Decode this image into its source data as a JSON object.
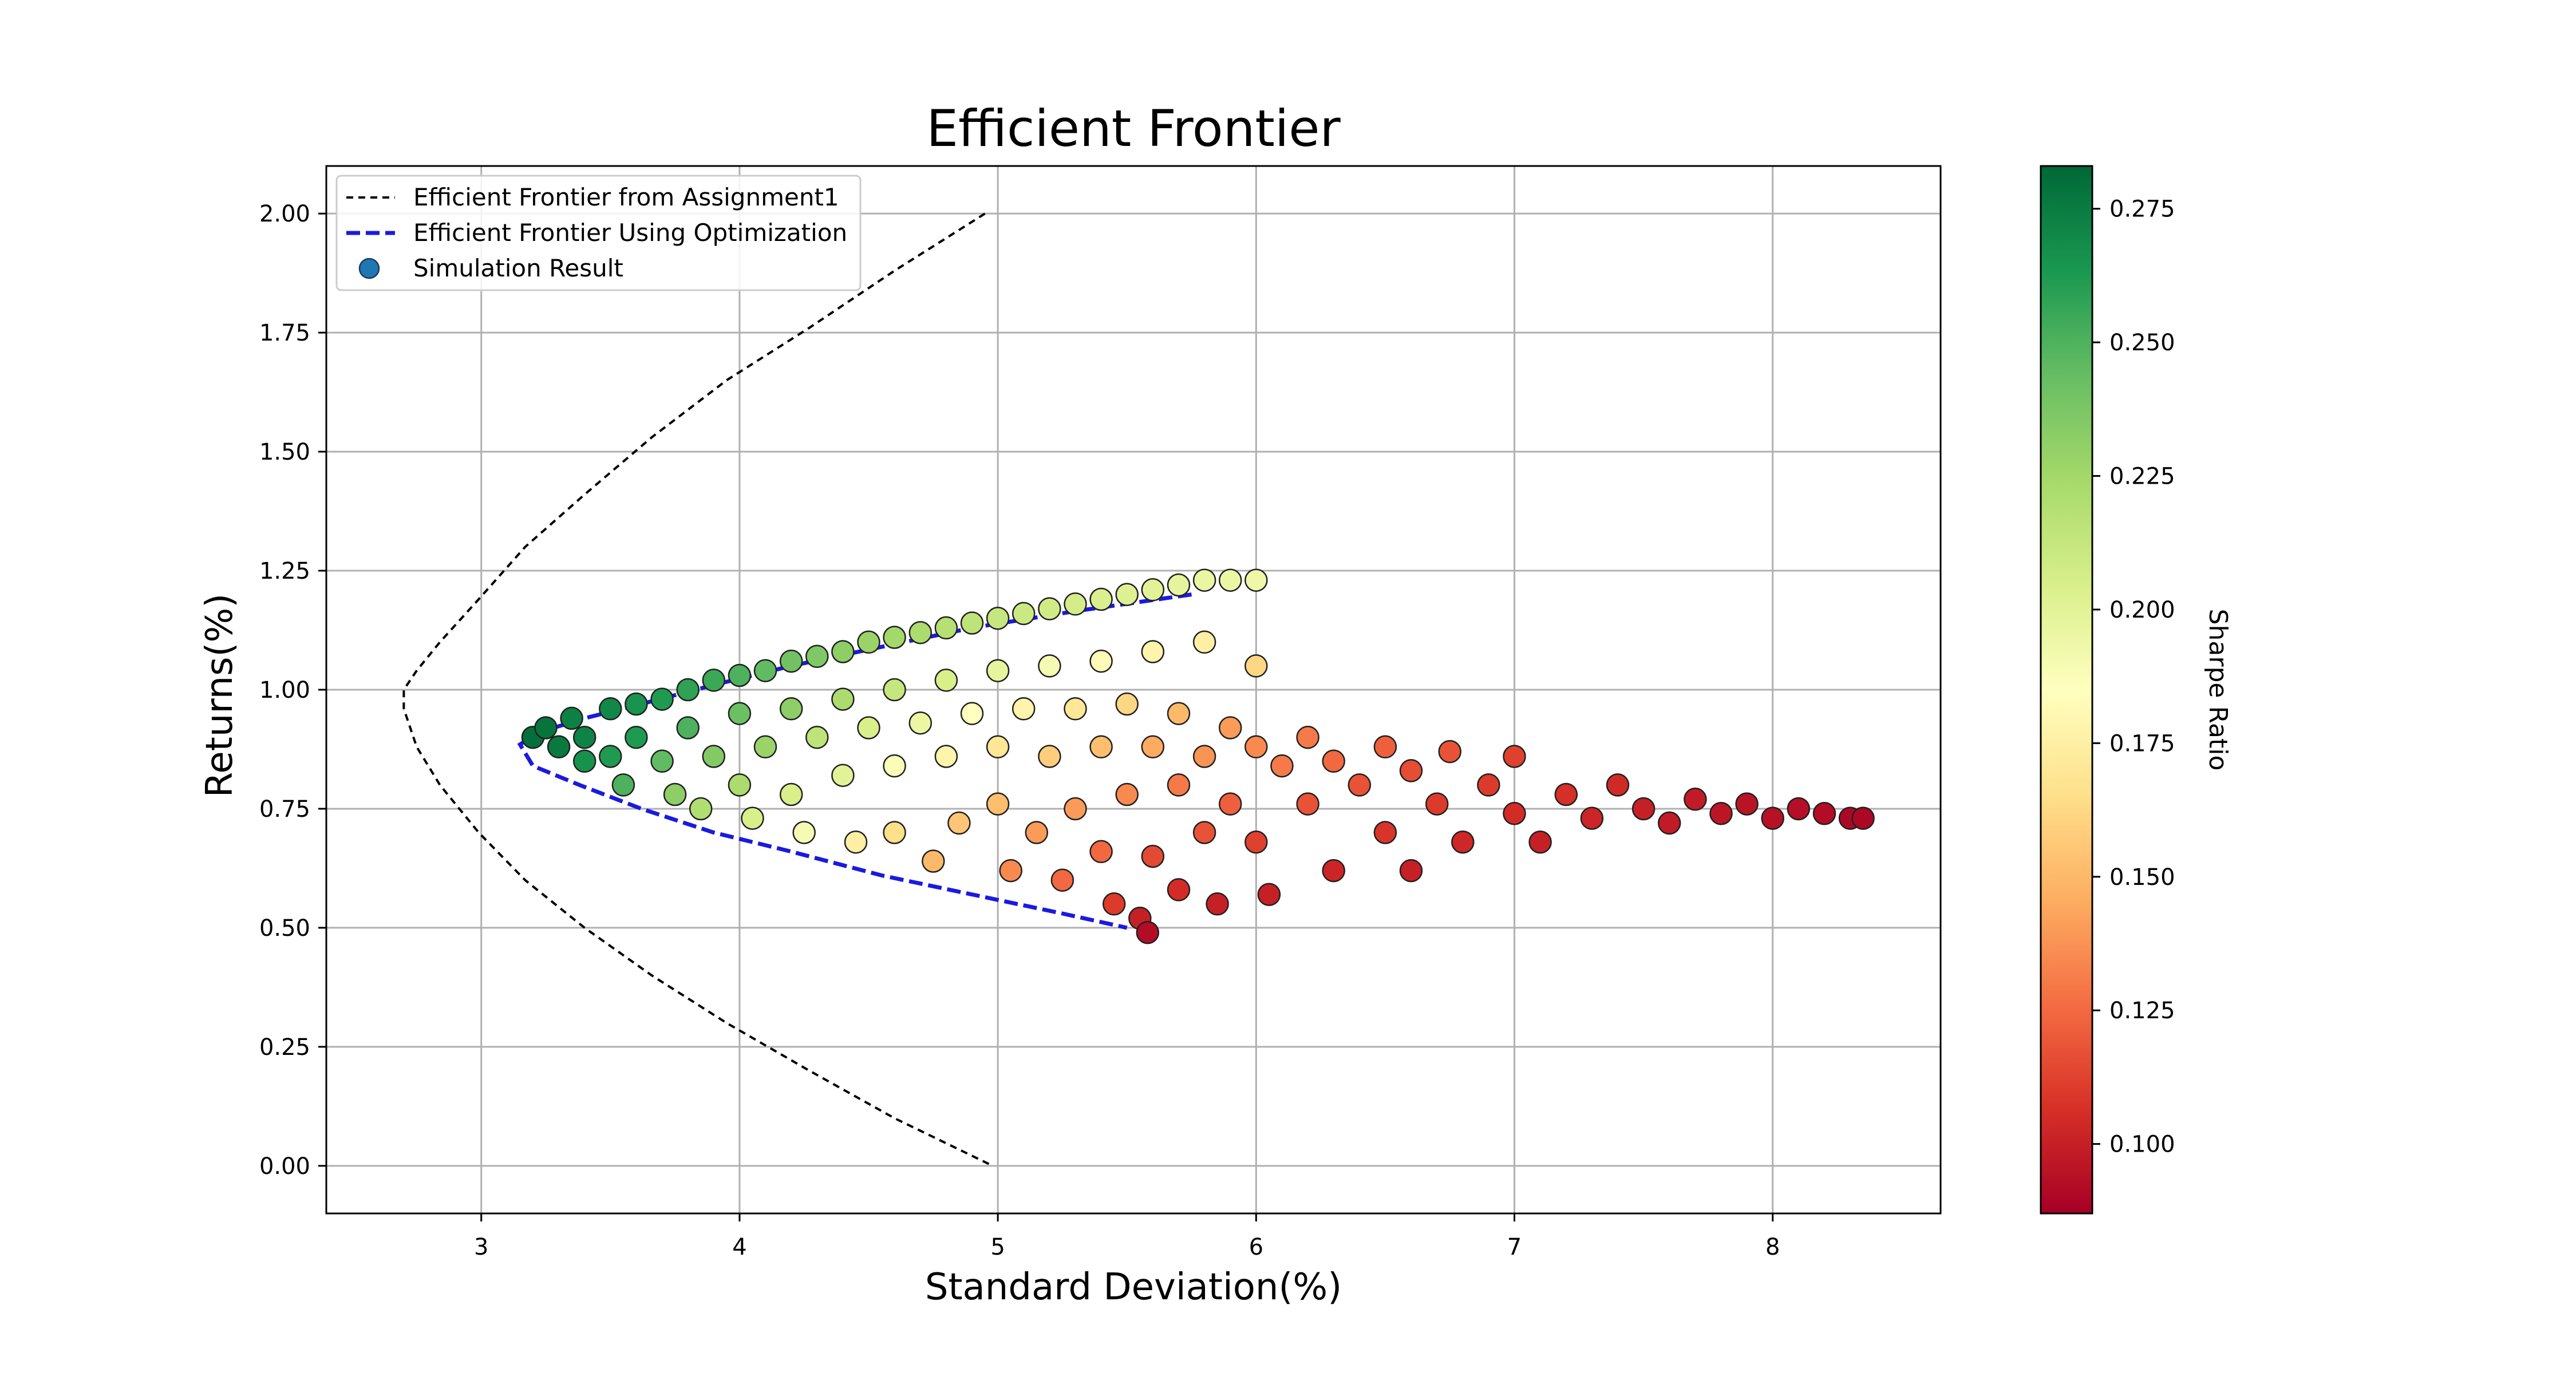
{
  "chart_data": {
    "type": "scatter",
    "title": "Efficient Frontier",
    "xlabel": "Standard Deviation(%)",
    "ylabel": "Returns(%)",
    "xlim": [
      2.4,
      8.65
    ],
    "ylim": [
      -0.1,
      2.1
    ],
    "xticks": [
      3,
      4,
      5,
      6,
      7,
      8
    ],
    "yticks": [
      "0.00",
      "0.25",
      "0.50",
      "0.75",
      "1.00",
      "1.25",
      "1.50",
      "1.75",
      "2.00"
    ],
    "ytick_values": [
      0,
      0.25,
      0.5,
      0.75,
      1.0,
      1.25,
      1.5,
      1.75,
      2.0
    ],
    "grid": true,
    "legend_position": "top-left",
    "legend": [
      {
        "label": "Efficient Frontier from Assignment1",
        "style": "dashed",
        "color": "#000000"
      },
      {
        "label": "Efficient Frontier Using Optimization",
        "style": "dashed",
        "color": "#1a1adf"
      },
      {
        "label": "Simulation Result",
        "style": "marker",
        "color": "#1f77b4"
      }
    ],
    "colorbar": {
      "label": "Sharpe Ratio",
      "colormap": "RdYlGn",
      "range": [
        0.087,
        0.283
      ],
      "ticks": [
        "0.100",
        "0.125",
        "0.150",
        "0.175",
        "0.200",
        "0.225",
        "0.250",
        "0.275"
      ],
      "tick_values": [
        0.1,
        0.125,
        0.15,
        0.175,
        0.2,
        0.225,
        0.25,
        0.275
      ]
    },
    "series": [
      {
        "name": "Efficient Frontier from Assignment1",
        "type": "line",
        "style": "dashed",
        "color": "#000000",
        "x": [
          4.95,
          4.6,
          4.27,
          3.95,
          3.66,
          3.4,
          3.17,
          2.99,
          2.84,
          2.75,
          2.7,
          2.7,
          2.75,
          2.84,
          2.99,
          3.17,
          3.4,
          3.66,
          3.95,
          4.27,
          4.6,
          4.98
        ],
        "y": [
          2.0,
          1.88,
          1.76,
          1.65,
          1.53,
          1.41,
          1.3,
          1.19,
          1.1,
          1.04,
          1.0,
          0.96,
          0.88,
          0.8,
          0.7,
          0.6,
          0.5,
          0.4,
          0.3,
          0.2,
          0.1,
          0.0
        ]
      },
      {
        "name": "Efficient Frontier Using Optimization",
        "type": "line",
        "style": "dashed",
        "color": "#1a1adf",
        "x": [
          5.75,
          5.3,
          4.9,
          4.55,
          4.2,
          3.9,
          3.62,
          3.4,
          3.22,
          3.15,
          3.2,
          3.38,
          3.62,
          3.9,
          4.2,
          4.55,
          4.9,
          5.25,
          5.5
        ],
        "y": [
          1.2,
          1.165,
          1.13,
          1.09,
          1.05,
          1.01,
          0.97,
          0.94,
          0.91,
          0.885,
          0.84,
          0.8,
          0.75,
          0.7,
          0.66,
          0.61,
          0.57,
          0.53,
          0.5
        ]
      },
      {
        "name": "Simulation Result",
        "type": "scatter",
        "color_by": "sharpe_ratio",
        "points": [
          [
            3.2,
            0.9,
            0.28
          ],
          [
            3.25,
            0.92,
            0.278
          ],
          [
            3.3,
            0.88,
            0.276
          ],
          [
            3.35,
            0.94,
            0.273
          ],
          [
            3.4,
            0.9,
            0.272
          ],
          [
            3.4,
            0.85,
            0.266
          ],
          [
            3.5,
            0.96,
            0.27
          ],
          [
            3.5,
            0.86,
            0.262
          ],
          [
            3.55,
            0.8,
            0.25
          ],
          [
            3.6,
            0.97,
            0.265
          ],
          [
            3.6,
            0.9,
            0.262
          ],
          [
            3.7,
            0.98,
            0.262
          ],
          [
            3.7,
            0.85,
            0.245
          ],
          [
            3.75,
            0.78,
            0.232
          ],
          [
            3.8,
            1.0,
            0.258
          ],
          [
            3.8,
            0.92,
            0.25
          ],
          [
            3.85,
            0.75,
            0.22
          ],
          [
            3.9,
            1.02,
            0.255
          ],
          [
            3.9,
            0.86,
            0.235
          ],
          [
            4.0,
            1.03,
            0.25
          ],
          [
            4.0,
            0.95,
            0.242
          ],
          [
            4.0,
            0.8,
            0.222
          ],
          [
            4.05,
            0.73,
            0.205
          ],
          [
            4.1,
            1.04,
            0.245
          ],
          [
            4.1,
            0.88,
            0.228
          ],
          [
            4.2,
            1.06,
            0.24
          ],
          [
            4.2,
            0.96,
            0.232
          ],
          [
            4.2,
            0.78,
            0.205
          ],
          [
            4.25,
            0.7,
            0.19
          ],
          [
            4.3,
            1.07,
            0.236
          ],
          [
            4.3,
            0.9,
            0.215
          ],
          [
            4.4,
            1.08,
            0.232
          ],
          [
            4.4,
            0.98,
            0.222
          ],
          [
            4.4,
            0.82,
            0.2
          ],
          [
            4.45,
            0.68,
            0.175
          ],
          [
            4.5,
            1.1,
            0.228
          ],
          [
            4.5,
            0.92,
            0.205
          ],
          [
            4.6,
            1.11,
            0.225
          ],
          [
            4.6,
            1.0,
            0.212
          ],
          [
            4.6,
            0.84,
            0.188
          ],
          [
            4.6,
            0.7,
            0.165
          ],
          [
            4.7,
            1.12,
            0.222
          ],
          [
            4.7,
            0.93,
            0.195
          ],
          [
            4.75,
            0.64,
            0.15
          ],
          [
            4.8,
            1.13,
            0.218
          ],
          [
            4.8,
            1.02,
            0.205
          ],
          [
            4.8,
            0.86,
            0.178
          ],
          [
            4.85,
            0.72,
            0.155
          ],
          [
            4.9,
            1.14,
            0.215
          ],
          [
            4.9,
            0.95,
            0.185
          ],
          [
            5.0,
            1.15,
            0.212
          ],
          [
            5.0,
            1.04,
            0.198
          ],
          [
            5.0,
            0.88,
            0.17
          ],
          [
            5.0,
            0.76,
            0.152
          ],
          [
            5.05,
            0.62,
            0.135
          ],
          [
            5.1,
            1.16,
            0.21
          ],
          [
            5.1,
            0.96,
            0.178
          ],
          [
            5.15,
            0.7,
            0.14
          ],
          [
            5.2,
            1.17,
            0.208
          ],
          [
            5.2,
            1.05,
            0.19
          ],
          [
            5.2,
            0.86,
            0.158
          ],
          [
            5.25,
            0.6,
            0.125
          ],
          [
            5.3,
            1.18,
            0.206
          ],
          [
            5.3,
            0.96,
            0.17
          ],
          [
            5.3,
            0.75,
            0.14
          ],
          [
            5.4,
            1.19,
            0.204
          ],
          [
            5.4,
            1.06,
            0.182
          ],
          [
            5.4,
            0.88,
            0.152
          ],
          [
            5.4,
            0.66,
            0.125
          ],
          [
            5.45,
            0.55,
            0.11
          ],
          [
            5.5,
            1.2,
            0.202
          ],
          [
            5.5,
            0.97,
            0.162
          ],
          [
            5.5,
            0.78,
            0.135
          ],
          [
            5.55,
            0.52,
            0.1
          ],
          [
            5.58,
            0.49,
            0.092
          ],
          [
            5.6,
            1.21,
            0.2
          ],
          [
            5.6,
            1.08,
            0.178
          ],
          [
            5.6,
            0.88,
            0.145
          ],
          [
            5.6,
            0.65,
            0.115
          ],
          [
            5.7,
            1.22,
            0.198
          ],
          [
            5.7,
            0.95,
            0.15
          ],
          [
            5.7,
            0.8,
            0.13
          ],
          [
            5.7,
            0.58,
            0.105
          ],
          [
            5.8,
            1.23,
            0.196
          ],
          [
            5.8,
            1.1,
            0.175
          ],
          [
            5.8,
            0.86,
            0.138
          ],
          [
            5.8,
            0.7,
            0.118
          ],
          [
            5.85,
            0.55,
            0.1
          ],
          [
            5.9,
            1.23,
            0.195
          ],
          [
            5.9,
            0.92,
            0.14
          ],
          [
            5.9,
            0.76,
            0.122
          ],
          [
            6.0,
            1.23,
            0.194
          ],
          [
            6.0,
            1.05,
            0.162
          ],
          [
            6.0,
            0.88,
            0.135
          ],
          [
            6.0,
            0.68,
            0.112
          ],
          [
            6.05,
            0.57,
            0.1
          ],
          [
            6.1,
            0.84,
            0.13
          ],
          [
            6.2,
            0.9,
            0.13
          ],
          [
            6.2,
            0.76,
            0.118
          ],
          [
            6.3,
            0.62,
            0.102
          ],
          [
            6.3,
            0.85,
            0.125
          ],
          [
            6.4,
            0.8,
            0.118
          ],
          [
            6.5,
            0.88,
            0.122
          ],
          [
            6.5,
            0.7,
            0.108
          ],
          [
            6.6,
            0.83,
            0.116
          ],
          [
            6.6,
            0.62,
            0.1
          ],
          [
            6.7,
            0.76,
            0.11
          ],
          [
            6.75,
            0.87,
            0.118
          ],
          [
            6.8,
            0.68,
            0.103
          ],
          [
            6.9,
            0.8,
            0.11
          ],
          [
            7.0,
            0.74,
            0.105
          ],
          [
            7.0,
            0.86,
            0.112
          ],
          [
            7.1,
            0.68,
            0.1
          ],
          [
            7.2,
            0.78,
            0.106
          ],
          [
            7.3,
            0.73,
            0.102
          ],
          [
            7.4,
            0.8,
            0.104
          ],
          [
            7.5,
            0.75,
            0.1
          ],
          [
            7.6,
            0.72,
            0.098
          ],
          [
            7.7,
            0.77,
            0.098
          ],
          [
            7.8,
            0.74,
            0.096
          ],
          [
            7.9,
            0.76,
            0.095
          ],
          [
            8.0,
            0.73,
            0.094
          ],
          [
            8.1,
            0.75,
            0.093
          ],
          [
            8.2,
            0.74,
            0.092
          ],
          [
            8.3,
            0.73,
            0.09
          ],
          [
            8.35,
            0.73,
            0.09
          ]
        ]
      }
    ]
  }
}
